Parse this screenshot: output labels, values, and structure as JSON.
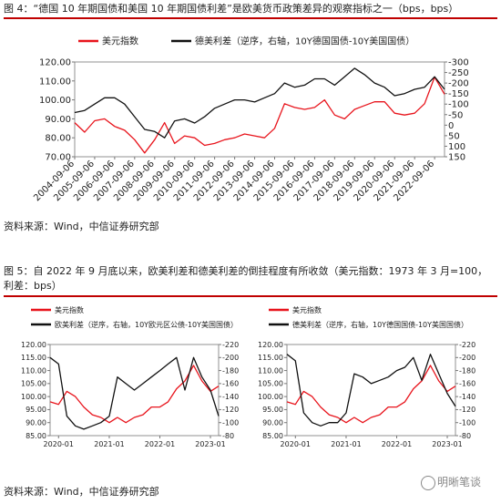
{
  "document": {
    "fig4_caption": "图 4：“德国 10 年期国债和美国 10 年期国债利差”是欧美货币政策差异的观察指标之一（bps，bps）",
    "fig4_source": "资料来源：Wind，中信证券研究部",
    "fig5_caption": "图 5：自 2022 年 9 月底以来，欧美利差和德美利差的倒挂程度有所收敛（美元指数：1973 年 3 月=100，利差：bps）",
    "fig5_source": "资料来源：Wind，中信证券研究部",
    "watermark": "明晰笔谈"
  },
  "chart_data": [
    {
      "type": "line",
      "x": [
        "2004-09-06",
        "2005-03-06",
        "2005-09-06",
        "2006-03-06",
        "2006-09-06",
        "2007-03-06",
        "2007-09-06",
        "2008-03-06",
        "2008-09-06",
        "2009-03-06",
        "2009-09-06",
        "2010-03-06",
        "2010-09-06",
        "2011-03-06",
        "2011-09-06",
        "2012-03-06",
        "2012-09-06",
        "2013-03-06",
        "2013-09-06",
        "2014-03-06",
        "2014-09-06",
        "2015-03-06",
        "2015-09-06",
        "2016-03-06",
        "2016-09-06",
        "2017-03-06",
        "2017-09-06",
        "2018-03-06",
        "2018-09-06",
        "2019-03-06",
        "2019-09-06",
        "2020-03-06",
        "2020-09-06",
        "2021-03-06",
        "2021-09-06",
        "2022-03-06",
        "2022-09-06",
        "2023-03-06"
      ],
      "xlim": [
        "2004-09-06",
        "2023-03-06"
      ],
      "xticks": [
        "2004-09-06",
        "2005-09-06",
        "2006-09-06",
        "2007-09-06",
        "2008-09-06",
        "2009-09-06",
        "2010-09-06",
        "2011-09-06",
        "2012-09-06",
        "2013-09-06",
        "2014-09-06",
        "2015-09-06",
        "2016-09-06",
        "2017-09-06",
        "2018-09-06",
        "2019-09-06",
        "2020-09-06",
        "2021-09-06",
        "2022-09-06"
      ],
      "ylim": [
        70,
        120
      ],
      "yticks": [
        {
          "value": 120,
          "label": "120.00"
        },
        {
          "value": 110,
          "label": "110.00"
        },
        {
          "value": 100,
          "label": "100.00"
        },
        {
          "value": 90,
          "label": "90.00"
        },
        {
          "value": 80,
          "label": "80.00"
        },
        {
          "value": 70,
          "label": "70.00"
        }
      ],
      "y2lim": [
        150,
        -300
      ],
      "y2ticks": [
        -300,
        -250,
        -200,
        -150,
        -100,
        -50,
        0,
        50,
        100,
        150
      ],
      "series": [
        {
          "name": "美元指数",
          "color": "#e8141c",
          "values": [
            88,
            83,
            89,
            90,
            86,
            84,
            79,
            72,
            79,
            88,
            77,
            81,
            80,
            76,
            77,
            79,
            80,
            82,
            81,
            80,
            85,
            98,
            96,
            95,
            96,
            100,
            92,
            90,
            95,
            97,
            99,
            99,
            93,
            92,
            93,
            98,
            112,
            103
          ]
        },
        {
          "name": "德美利差（逆序，右轴，10Y德国国债-10Y美国国债）",
          "color": "#111111",
          "axis": "y2",
          "values": [
            -60,
            -70,
            -100,
            -130,
            -130,
            -100,
            -40,
            20,
            30,
            60,
            -20,
            -30,
            -10,
            -40,
            -80,
            -100,
            -120,
            -120,
            -110,
            -130,
            -150,
            -200,
            -180,
            -190,
            -220,
            -220,
            -190,
            -230,
            -270,
            -240,
            -200,
            -180,
            -140,
            -150,
            -170,
            -180,
            -230,
            -170
          ]
        }
      ]
    },
    {
      "type": "line",
      "x": [
        "2019-11",
        "2020-01",
        "2020-03",
        "2020-05",
        "2020-07",
        "2020-09",
        "2020-11",
        "2021-01",
        "2021-03",
        "2021-05",
        "2021-07",
        "2021-09",
        "2021-11",
        "2022-01",
        "2022-03",
        "2022-05",
        "2022-07",
        "2022-09",
        "2022-11",
        "2023-01",
        "2023-03"
      ],
      "xlim": [
        "2019-11",
        "2023-03"
      ],
      "xticks": [
        "2020-01",
        "2021-01",
        "2022-01",
        "2023-01"
      ],
      "ylim": [
        85,
        120
      ],
      "yticks": [
        {
          "value": 120,
          "label": "120.00"
        },
        {
          "value": 115,
          "label": "115.00"
        },
        {
          "value": 110,
          "label": "110.00"
        },
        {
          "value": 105,
          "label": "105.00"
        },
        {
          "value": 100,
          "label": "100.00"
        },
        {
          "value": 95,
          "label": "95.00"
        },
        {
          "value": 90,
          "label": "90.00"
        },
        {
          "value": 85,
          "label": "85.00"
        }
      ],
      "y2lim": [
        -80,
        -220
      ],
      "y2ticks": [
        -220,
        -200,
        -180,
        -160,
        -140,
        -120,
        -100,
        -80
      ],
      "series": [
        {
          "name": "美元指数",
          "color": "#e8141c",
          "values": [
            98,
            97,
            102,
            100,
            96,
            93,
            92,
            90,
            92,
            90,
            92,
            93,
            96,
            96,
            98,
            103,
            106,
            112,
            106,
            102,
            104
          ]
        },
        {
          "name": "欧美利差（逆序，右轴，10Y欧元区公债-10Y美国国债）",
          "color": "#111111",
          "axis": "y2",
          "values": [
            -200,
            -190,
            -110,
            -95,
            -90,
            -95,
            -100,
            -110,
            -170,
            -160,
            -150,
            -160,
            -170,
            -180,
            -190,
            -200,
            -150,
            -200,
            -170,
            -150,
            -110
          ]
        }
      ]
    },
    {
      "type": "line",
      "x": [
        "2019-11",
        "2020-01",
        "2020-03",
        "2020-05",
        "2020-07",
        "2020-09",
        "2020-11",
        "2021-01",
        "2021-03",
        "2021-05",
        "2021-07",
        "2021-09",
        "2021-11",
        "2022-01",
        "2022-03",
        "2022-05",
        "2022-07",
        "2022-09",
        "2022-11",
        "2023-01",
        "2023-03"
      ],
      "xlim": [
        "2019-11",
        "2023-03"
      ],
      "xticks": [
        "2020-01",
        "2021-01",
        "2022-01",
        "2023-01"
      ],
      "ylim": [
        85,
        120
      ],
      "yticks": [
        {
          "value": 120,
          "label": "120.00"
        },
        {
          "value": 115,
          "label": "115.00"
        },
        {
          "value": 110,
          "label": "110.00"
        },
        {
          "value": 105,
          "label": "105.00"
        },
        {
          "value": 100,
          "label": "100.00"
        },
        {
          "value": 95,
          "label": "95.00"
        },
        {
          "value": 90,
          "label": "90.00"
        },
        {
          "value": 85,
          "label": "85.00"
        }
      ],
      "y2lim": [
        -80,
        -220
      ],
      "y2ticks": [
        -220,
        -200,
        -180,
        -160,
        -140,
        -120,
        -100,
        -80
      ],
      "series": [
        {
          "name": "美元指数",
          "color": "#e8141c",
          "values": [
            98,
            97,
            102,
            100,
            96,
            93,
            92,
            90,
            92,
            90,
            92,
            93,
            96,
            96,
            98,
            103,
            106,
            112,
            106,
            102,
            104
          ]
        },
        {
          "name": "德美利差（逆序，右轴，10Y德国国债-10Y美国国债）",
          "color": "#111111",
          "axis": "y2",
          "values": [
            -205,
            -195,
            -115,
            -100,
            -95,
            -100,
            -100,
            -115,
            -175,
            -170,
            -160,
            -165,
            -170,
            -180,
            -185,
            -200,
            -165,
            -205,
            -175,
            -145,
            -125
          ]
        }
      ]
    }
  ]
}
